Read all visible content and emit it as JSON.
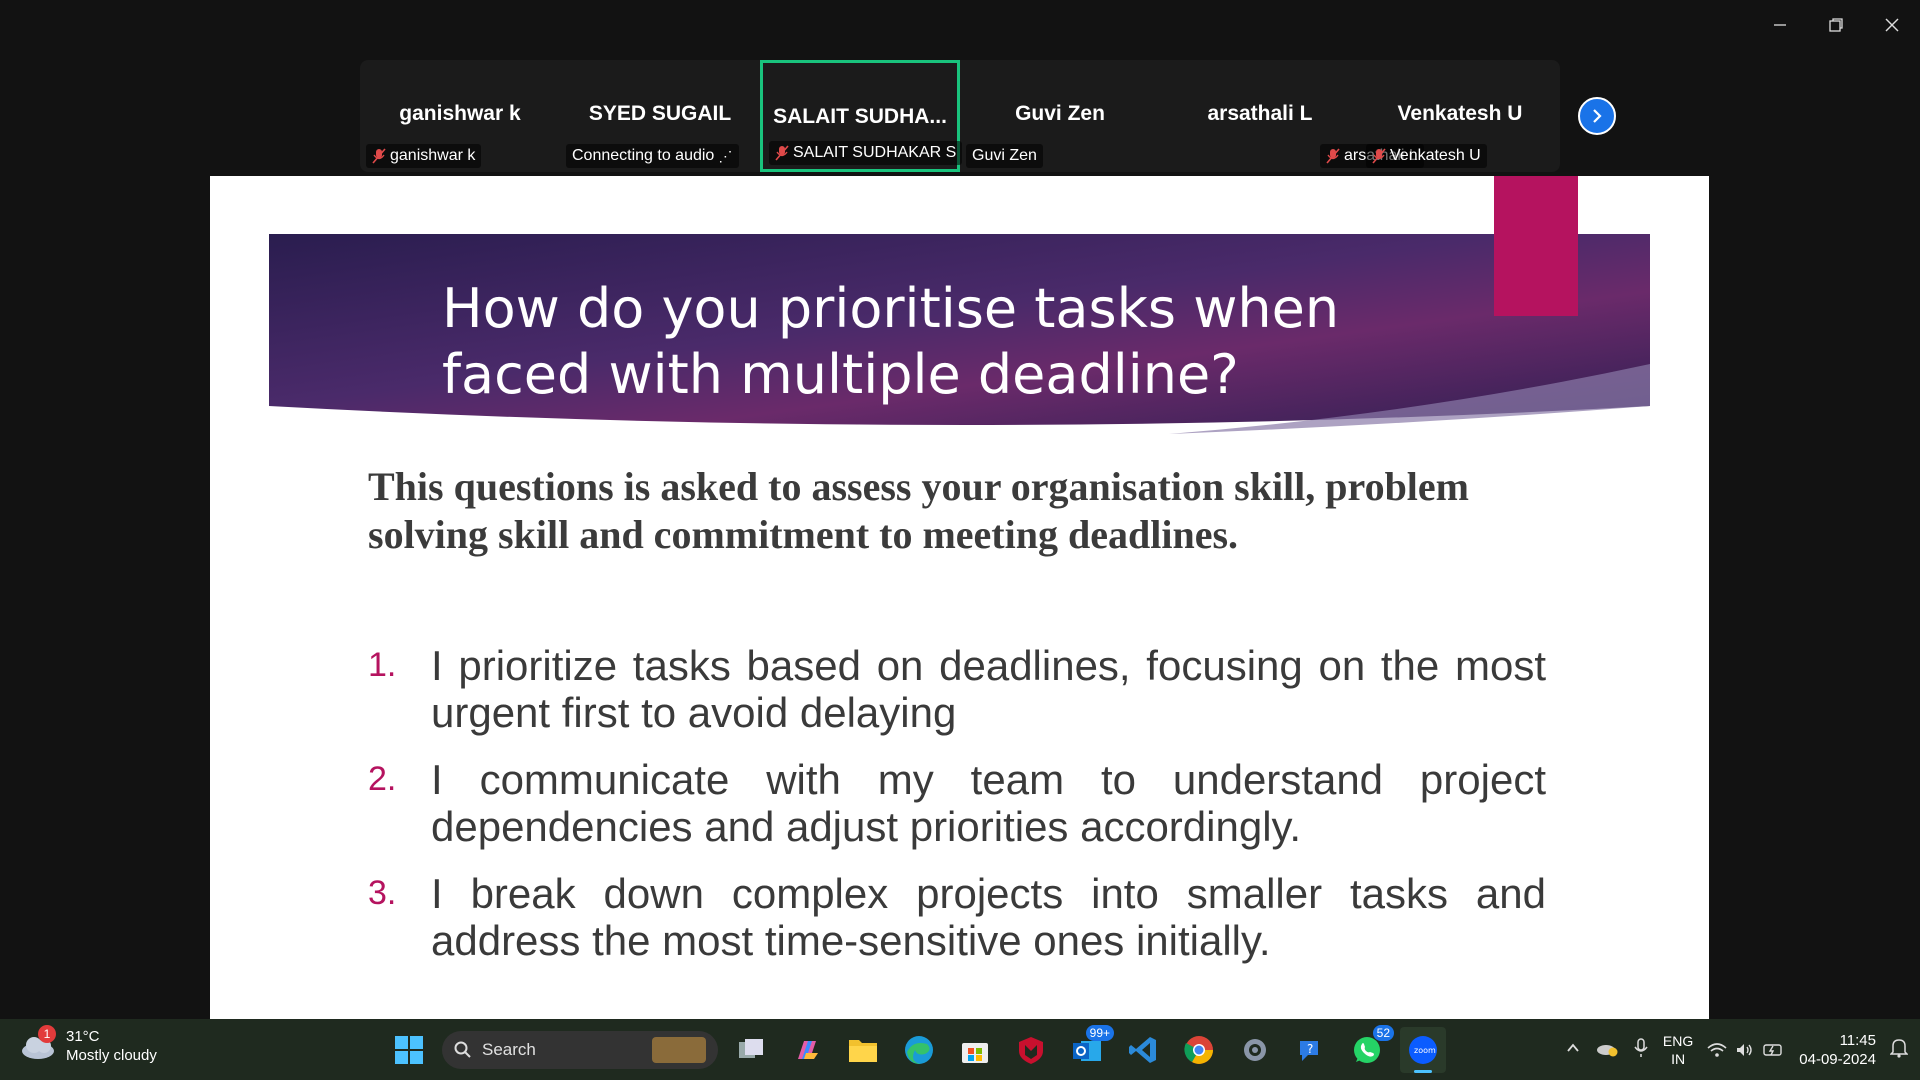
{
  "window": {
    "controls": [
      {
        "name": "minimize-icon"
      },
      {
        "name": "restore-icon"
      },
      {
        "name": "close-icon"
      }
    ]
  },
  "participants": [
    {
      "display": "ganishwar k",
      "label": "ganishwar k",
      "muted": true,
      "active": false
    },
    {
      "display": "SYED SUGAIL",
      "label": "Connecting to audio",
      "muted": false,
      "active": false,
      "connecting": true
    },
    {
      "display": "SALAIT  SUDHA...",
      "label": "SALAIT SUDHAKAR S",
      "muted": true,
      "active": true
    },
    {
      "display": "Guvi Zen",
      "label": "Guvi Zen",
      "muted": false,
      "active": false
    },
    {
      "display": "arsathali L",
      "label": "arsathali L",
      "muted": true,
      "active": false
    },
    {
      "display": "Venkatesh U",
      "label": "Venkatesh U",
      "muted": true,
      "active": false
    }
  ],
  "slide": {
    "title_line1": "How do you prioritise tasks when",
    "title_line2": "faced with multiple deadline?",
    "intro": "This questions is asked to assess your organisation skill, problem solving skill and commitment to meeting deadlines.",
    "points": [
      {
        "num": "1.",
        "text": "I  prioritize tasks based on deadlines, focusing on the most urgent first to avoid delaying"
      },
      {
        "num": "2.",
        "text": "I communicate with my team to understand project dependencies and adjust priorities accordingly."
      },
      {
        "num": "3.",
        "text": "I break down complex projects into smaller tasks and address the most time-sensitive ones initially."
      }
    ],
    "colors": {
      "banner_dark": "#2a1d4f",
      "banner_light": "#6a2a6a",
      "accent": "#b5135f"
    }
  },
  "taskbar": {
    "weather": {
      "badge": "1",
      "temp": "31°C",
      "condition": "Mostly cloudy"
    },
    "search_label": "Search",
    "apps": [
      {
        "name": "windows-start-icon"
      },
      {
        "name": "task-view-icon"
      },
      {
        "name": "copilot-icon"
      },
      {
        "name": "file-explorer-icon"
      },
      {
        "name": "edge-icon"
      },
      {
        "name": "store-icon"
      },
      {
        "name": "mcafee-icon"
      },
      {
        "name": "outlook-icon",
        "count": "99+"
      },
      {
        "name": "vscode-icon"
      },
      {
        "name": "chrome-icon"
      },
      {
        "name": "settings-icon"
      },
      {
        "name": "help-icon"
      },
      {
        "name": "whatsapp-icon",
        "count": "52"
      },
      {
        "name": "zoom-icon",
        "active": true
      }
    ],
    "tray": {
      "lang1": "ENG",
      "lang2": "IN",
      "time": "11:45",
      "date": "04-09-2024"
    }
  }
}
